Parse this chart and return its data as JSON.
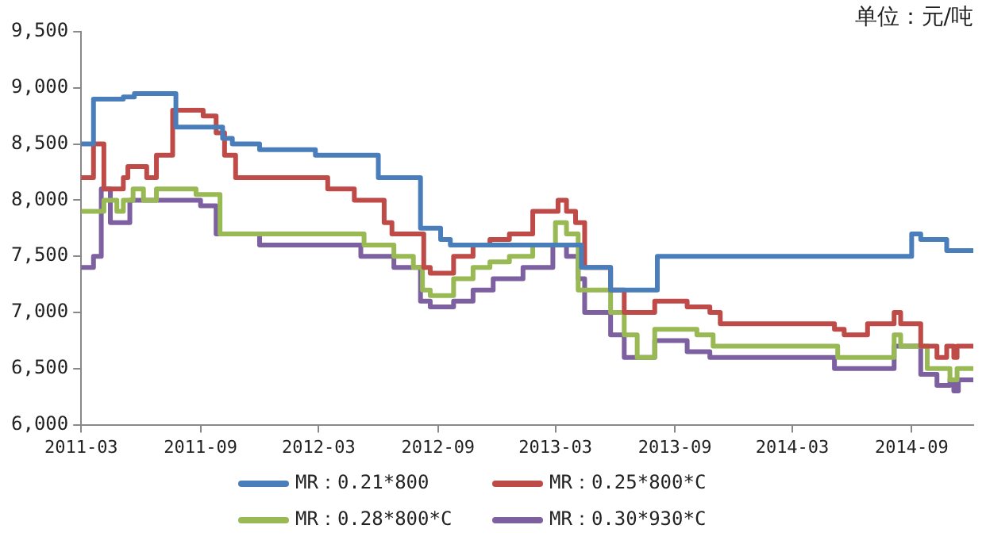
{
  "chart_data": {
    "type": "step",
    "annotations": [
      "单位：元/吨"
    ],
    "xlim": [
      "2011-03-01",
      "2014-12-05"
    ],
    "ylim": [
      6000,
      9500
    ],
    "xticks": [
      "2011-03",
      "2011-09",
      "2012-03",
      "2012-09",
      "2013-03",
      "2013-09",
      "2014-03",
      "2014-09"
    ],
    "yticks": [
      {
        "value": 6000,
        "label": "6,000"
      },
      {
        "value": 6500,
        "label": "6,500"
      },
      {
        "value": 7000,
        "label": "7,000"
      },
      {
        "value": 7500,
        "label": "7,500"
      },
      {
        "value": 8000,
        "label": "8,000"
      },
      {
        "value": 8500,
        "label": "8,500"
      },
      {
        "value": 9000,
        "label": "9,000"
      },
      {
        "value": 9500,
        "label": "9,500"
      }
    ],
    "grid": false,
    "legend": "bottom",
    "marker": "none",
    "line_style": "solid",
    "series": [
      {
        "name": "MR：0.21*800",
        "color": "#4a7ebb",
        "x": [
          "2011-03-01",
          "2011-03-20",
          "2011-05-05",
          "2011-05-22",
          "2011-07-25",
          "2011-10-05",
          "2011-10-20",
          "2011-12-01",
          "2012-02-25",
          "2012-06-01",
          "2012-08-05",
          "2012-09-05",
          "2012-09-20",
          "2013-04-10",
          "2013-05-25",
          "2013-08-05",
          "2014-09-01",
          "2014-09-15",
          "2014-10-25",
          "2014-12-05"
        ],
        "values": [
          8500,
          8900,
          8920,
          8950,
          8650,
          8550,
          8500,
          8450,
          8400,
          8200,
          7750,
          7650,
          7600,
          7400,
          7200,
          7500,
          7700,
          7650,
          7550,
          7550
        ]
      },
      {
        "name": "MR：0.25*800*C",
        "color": "#be4b48",
        "x": [
          "2011-03-01",
          "2011-03-20",
          "2011-04-05",
          "2011-05-05",
          "2011-05-12",
          "2011-06-10",
          "2011-06-25",
          "2011-07-20",
          "2011-09-05",
          "2011-09-25",
          "2011-10-08",
          "2011-10-25",
          "2012-03-15",
          "2012-04-25",
          "2012-06-10",
          "2012-06-22",
          "2012-08-10",
          "2012-08-20",
          "2012-09-25",
          "2012-10-25",
          "2012-11-20",
          "2012-12-20",
          "2013-01-25",
          "2013-03-05",
          "2013-03-18",
          "2013-04-01",
          "2013-04-15",
          "2013-05-25",
          "2013-06-15",
          "2013-08-01",
          "2013-09-20",
          "2013-10-25",
          "2013-11-10",
          "2014-05-05",
          "2014-05-20",
          "2014-06-25",
          "2014-08-05",
          "2014-08-15",
          "2014-09-15",
          "2014-10-10",
          "2014-10-25",
          "2014-11-05",
          "2014-11-10",
          "2014-12-05"
        ],
        "values": [
          8200,
          8500,
          8100,
          8200,
          8300,
          8200,
          8400,
          8800,
          8750,
          8600,
          8400,
          8200,
          8100,
          8000,
          7800,
          7700,
          7400,
          7350,
          7500,
          7600,
          7650,
          7700,
          7900,
          8000,
          7900,
          7800,
          7400,
          7200,
          7000,
          7100,
          7050,
          7000,
          6900,
          6850,
          6800,
          6900,
          7000,
          6900,
          6700,
          6600,
          6700,
          6600,
          6700,
          6700
        ]
      },
      {
        "name": "MR：0.28*800*C",
        "color": "#98b954",
        "x": [
          "2011-03-01",
          "2011-04-05",
          "2011-04-25",
          "2011-05-05",
          "2011-05-20",
          "2011-06-05",
          "2011-06-25",
          "2011-08-25",
          "2011-10-01",
          "2012-05-10",
          "2012-06-25",
          "2012-07-25",
          "2012-08-08",
          "2012-08-20",
          "2012-09-25",
          "2012-10-25",
          "2012-11-20",
          "2012-12-20",
          "2013-01-25",
          "2013-03-01",
          "2013-03-18",
          "2013-04-05",
          "2013-05-25",
          "2013-06-15",
          "2013-07-05",
          "2013-08-01",
          "2013-10-05",
          "2013-10-30",
          "2014-05-10",
          "2014-08-05",
          "2014-08-15",
          "2014-09-25",
          "2014-10-30",
          "2014-11-10",
          "2014-12-05"
        ],
        "values": [
          7900,
          8000,
          7900,
          8000,
          8100,
          8000,
          8100,
          8050,
          7700,
          7600,
          7500,
          7400,
          7200,
          7150,
          7300,
          7400,
          7450,
          7500,
          7600,
          7800,
          7700,
          7200,
          7000,
          6800,
          6600,
          6850,
          6800,
          6700,
          6600,
          6800,
          6700,
          6500,
          6400,
          6500,
          6500
        ]
      },
      {
        "name": "MR：0.30*930*C",
        "color": "#7d60a0",
        "x": [
          "2011-03-01",
          "2011-03-20",
          "2011-04-01",
          "2011-04-15",
          "2011-05-15",
          "2011-09-01",
          "2011-09-25",
          "2011-12-01",
          "2012-05-05",
          "2012-06-25",
          "2012-08-05",
          "2012-08-20",
          "2012-09-25",
          "2012-10-25",
          "2012-11-25",
          "2013-01-10",
          "2013-02-25",
          "2013-03-18",
          "2013-04-05",
          "2013-04-15",
          "2013-05-25",
          "2013-06-15",
          "2013-08-01",
          "2013-09-20",
          "2013-10-25",
          "2014-05-05",
          "2014-08-05",
          "2014-09-15",
          "2014-10-10",
          "2014-10-30",
          "2014-11-05",
          "2014-11-12",
          "2014-12-05"
        ],
        "values": [
          7400,
          7500,
          8100,
          7800,
          8000,
          7950,
          7700,
          7600,
          7500,
          7400,
          7100,
          7050,
          7100,
          7200,
          7300,
          7400,
          7600,
          7500,
          7300,
          7000,
          6800,
          6600,
          6750,
          6650,
          6600,
          6500,
          6700,
          6450,
          6350,
          6400,
          6300,
          6400,
          6400
        ]
      }
    ]
  }
}
